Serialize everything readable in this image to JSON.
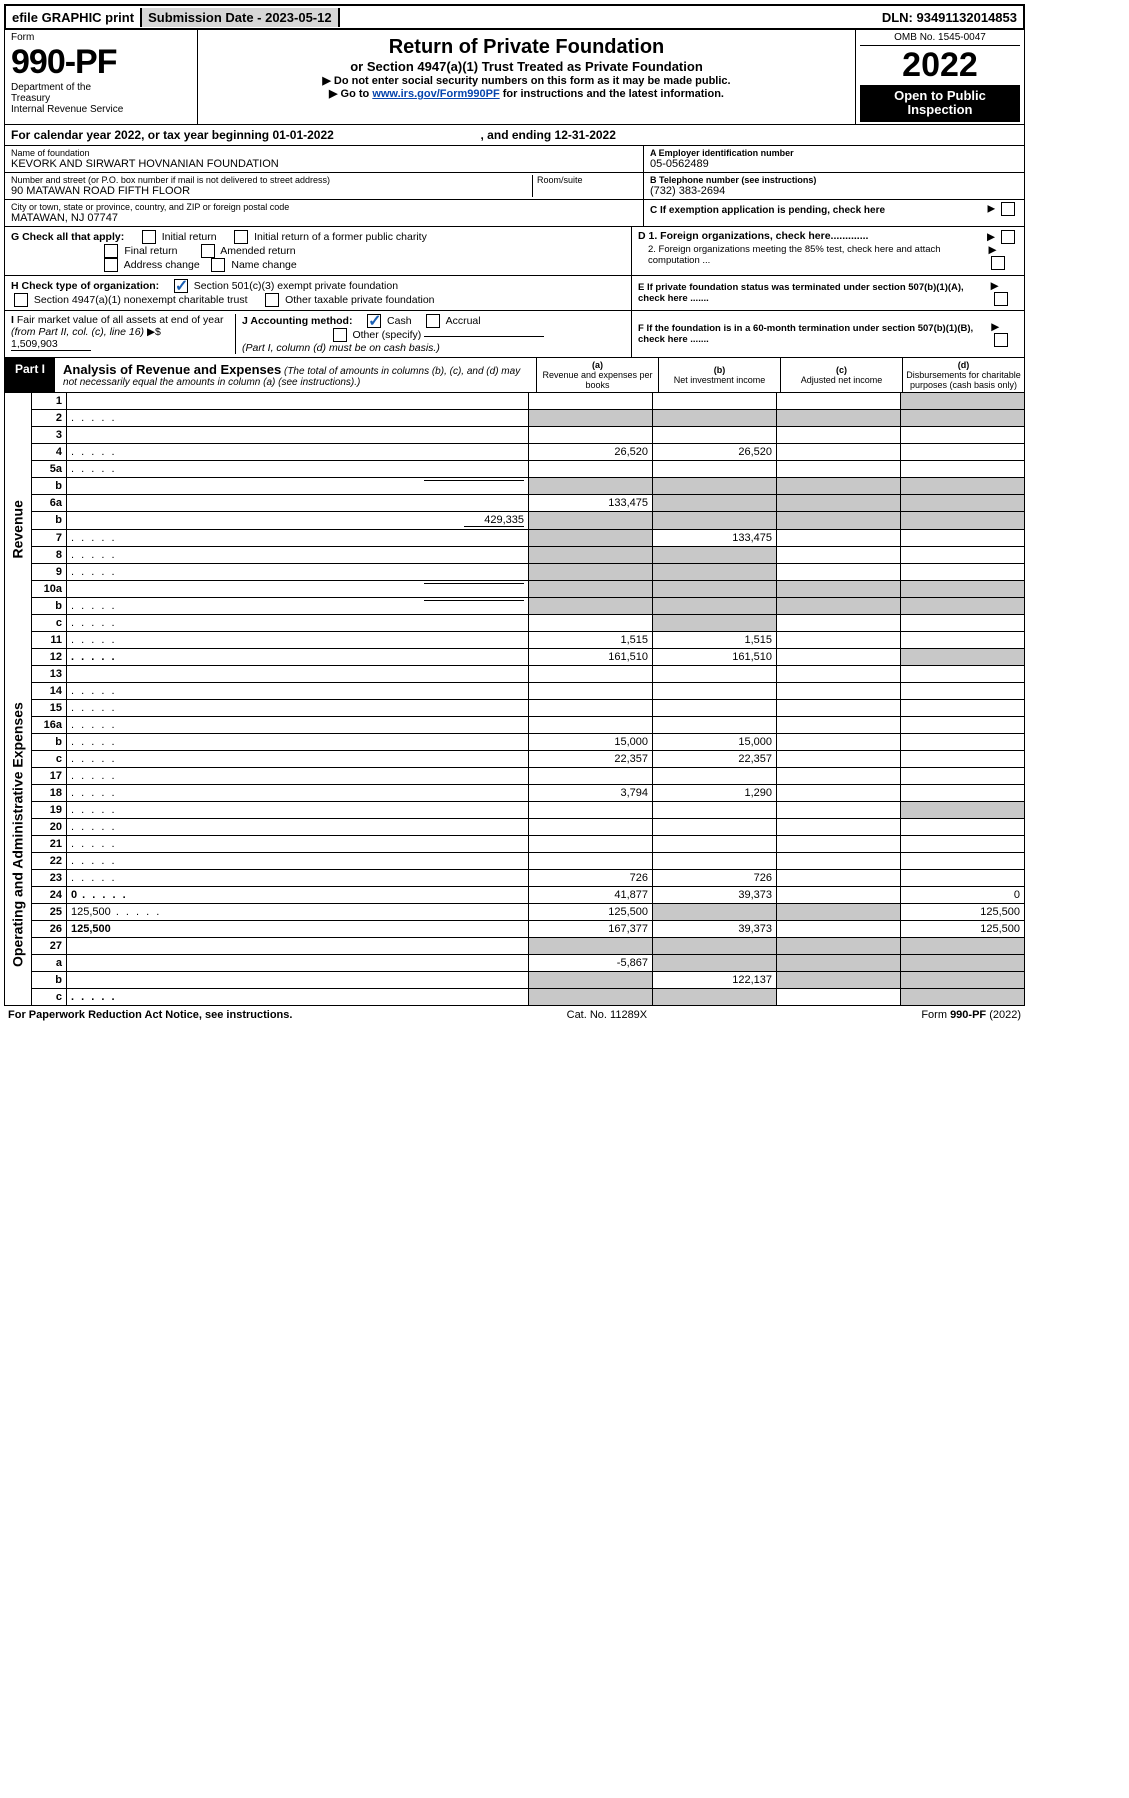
{
  "topbar": {
    "efile": "efile GRAPHIC print",
    "submission": "Submission Date - 2023-05-12",
    "dln": "DLN: 93491132014853"
  },
  "header": {
    "form_label": "Form",
    "form_number": "990-PF",
    "dept": "Department of the Treasury\nInternal Revenue Service",
    "title": "Return of Private Foundation",
    "subtitle": "or Section 4947(a)(1) Trust Treated as Private Foundation",
    "instr1": "▶ Do not enter social security numbers on this form as it may be made public.",
    "instr2_prefix": "▶ Go to ",
    "instr2_link": "www.irs.gov/Form990PF",
    "instr2_suffix": " for instructions and the latest information.",
    "omb": "OMB No. 1545-0047",
    "year": "2022",
    "open": "Open to Public Inspection"
  },
  "calendar": {
    "text_a": "For calendar year 2022, or tax year beginning 01-01-2022",
    "text_b": ", and ending 12-31-2022"
  },
  "foundation": {
    "name_lbl": "Name of foundation",
    "name": "KEVORK AND SIRWART HOVNANIAN FOUNDATION",
    "addr_lbl": "Number and street (or P.O. box number if mail is not delivered to street address)",
    "addr": "90 MATAWAN ROAD FIFTH FLOOR",
    "room_lbl": "Room/suite",
    "city_lbl": "City or town, state or province, country, and ZIP or foreign postal code",
    "city": "MATAWAN, NJ  07747",
    "ein_lbl": "A Employer identification number",
    "ein": "05-0562489",
    "tel_lbl": "B Telephone number (see instructions)",
    "tel": "(732) 383-2694",
    "c_lbl": "C If exemption application is pending, check here"
  },
  "checks": {
    "g_lbl": "G Check all that apply:",
    "g_options": [
      "Initial return",
      "Initial return of a former public charity",
      "Final return",
      "Amended return",
      "Address change",
      "Name change"
    ],
    "d1": "D 1. Foreign organizations, check here.............",
    "d2": "2. Foreign organizations meeting the 85% test, check here and attach computation ...",
    "h_lbl": "H Check type of organization:",
    "h1": "Section 501(c)(3) exempt private foundation",
    "h2": "Section 4947(a)(1) nonexempt charitable trust",
    "h3": "Other taxable private foundation",
    "e_text": "E If private foundation status was terminated under section 507(b)(1)(A), check here .......",
    "i_text": "I Fair market value of all assets at end of year (from Part II, col. (c), line 16) ▶$ ",
    "i_val": "1,509,903",
    "j_text": "J Accounting method:",
    "j_cash": "Cash",
    "j_accrual": "Accrual",
    "j_other": "Other (specify)",
    "j_note": "(Part I, column (d) must be on cash basis.)",
    "f_text": "F If the foundation is in a 60-month termination under section 507(b)(1)(B), check here ......."
  },
  "part1": {
    "label": "Part I",
    "title": "Analysis of Revenue and Expenses",
    "note": " (The total of amounts in columns (b), (c), and (d) may not necessarily equal the amounts in column (a) (see instructions).)",
    "col_a": "(a)  Revenue and expenses per books",
    "col_b": "(b)  Net investment income",
    "col_c": "(c)  Adjusted net income",
    "col_d": "(d)  Disbursements for charitable purposes (cash basis only)"
  },
  "side_labels": {
    "revenue": "Revenue",
    "expenses": "Operating and Administrative Expenses"
  },
  "rows": [
    {
      "n": "1",
      "d": "",
      "a": "",
      "b": "",
      "c": "",
      "shade_d": true
    },
    {
      "n": "2",
      "d": "",
      "a": "",
      "b": "",
      "c": "",
      "shade_all": true,
      "dots": true
    },
    {
      "n": "3",
      "d": "",
      "a": "",
      "b": "",
      "c": ""
    },
    {
      "n": "4",
      "d": "",
      "a": "26,520",
      "b": "26,520",
      "c": "",
      "dots": true
    },
    {
      "n": "5a",
      "d": "",
      "a": "",
      "b": "",
      "c": "",
      "dots": true
    },
    {
      "n": "b",
      "d": "",
      "a": "",
      "b": "",
      "c": "",
      "shade_all": true,
      "inline": true
    },
    {
      "n": "6a",
      "d": "",
      "a": "133,475",
      "b": "",
      "c": "",
      "shade_bcd": true
    },
    {
      "n": "b",
      "d": "",
      "a": "",
      "b": "",
      "c": "",
      "shade_all": true,
      "inline_val": "429,335"
    },
    {
      "n": "7",
      "d": "",
      "a": "",
      "b": "133,475",
      "c": "",
      "shade_a": true,
      "dots": true
    },
    {
      "n": "8",
      "d": "",
      "a": "",
      "b": "",
      "c": "",
      "shade_ab": true,
      "dots": true
    },
    {
      "n": "9",
      "d": "",
      "a": "",
      "b": "",
      "c": "",
      "shade_ab": true,
      "dots": true
    },
    {
      "n": "10a",
      "d": "",
      "a": "",
      "b": "",
      "c": "",
      "shade_all": true,
      "inline": true
    },
    {
      "n": "b",
      "d": "",
      "a": "",
      "b": "",
      "c": "",
      "shade_all": true,
      "inline": true,
      "dots": true
    },
    {
      "n": "c",
      "d": "",
      "a": "",
      "b": "",
      "c": "",
      "shade_b": true,
      "dots": true
    },
    {
      "n": "11",
      "d": "",
      "a": "1,515",
      "b": "1,515",
      "c": "",
      "dots": true
    },
    {
      "n": "12",
      "d": "",
      "a": "161,510",
      "b": "161,510",
      "c": "",
      "bold": true,
      "dots": true,
      "shade_d": true
    },
    {
      "n": "13",
      "d": "",
      "a": "",
      "b": "",
      "c": ""
    },
    {
      "n": "14",
      "d": "",
      "a": "",
      "b": "",
      "c": "",
      "dots": true
    },
    {
      "n": "15",
      "d": "",
      "a": "",
      "b": "",
      "c": "",
      "dots": true
    },
    {
      "n": "16a",
      "d": "",
      "a": "",
      "b": "",
      "c": "",
      "dots": true
    },
    {
      "n": "b",
      "d": "",
      "a": "15,000",
      "b": "15,000",
      "c": "",
      "dots": true
    },
    {
      "n": "c",
      "d": "",
      "a": "22,357",
      "b": "22,357",
      "c": "",
      "dots": true
    },
    {
      "n": "17",
      "d": "",
      "a": "",
      "b": "",
      "c": "",
      "dots": true
    },
    {
      "n": "18",
      "d": "",
      "a": "3,794",
      "b": "1,290",
      "c": "",
      "dots": true
    },
    {
      "n": "19",
      "d": "",
      "a": "",
      "b": "",
      "c": "",
      "shade_d": true,
      "dots": true
    },
    {
      "n": "20",
      "d": "",
      "a": "",
      "b": "",
      "c": "",
      "dots": true
    },
    {
      "n": "21",
      "d": "",
      "a": "",
      "b": "",
      "c": "",
      "dots": true
    },
    {
      "n": "22",
      "d": "",
      "a": "",
      "b": "",
      "c": "",
      "dots": true
    },
    {
      "n": "23",
      "d": "",
      "a": "726",
      "b": "726",
      "c": "",
      "dots": true
    },
    {
      "n": "24",
      "d": "0",
      "a": "41,877",
      "b": "39,373",
      "c": "",
      "bold": true,
      "dots": true
    },
    {
      "n": "25",
      "d": "125,500",
      "a": "125,500",
      "b": "",
      "c": "",
      "shade_bc": true,
      "dots": true
    },
    {
      "n": "26",
      "d": "125,500",
      "a": "167,377",
      "b": "39,373",
      "c": "",
      "bold": true
    },
    {
      "n": "27",
      "d": "",
      "a": "",
      "b": "",
      "c": "",
      "shade_all": true
    },
    {
      "n": "a",
      "d": "",
      "a": "-5,867",
      "b": "",
      "c": "",
      "bold": true,
      "shade_bcd": true
    },
    {
      "n": "b",
      "d": "",
      "a": "",
      "b": "122,137",
      "c": "",
      "bold": true,
      "shade_a": true,
      "shade_cd": true
    },
    {
      "n": "c",
      "d": "",
      "a": "",
      "b": "",
      "c": "",
      "bold": true,
      "shade_ab": true,
      "shade_d": true,
      "dots": true
    }
  ],
  "footer": {
    "left": "For Paperwork Reduction Act Notice, see instructions.",
    "center": "Cat. No. 11289X",
    "right": "Form 990-PF (2022)"
  }
}
